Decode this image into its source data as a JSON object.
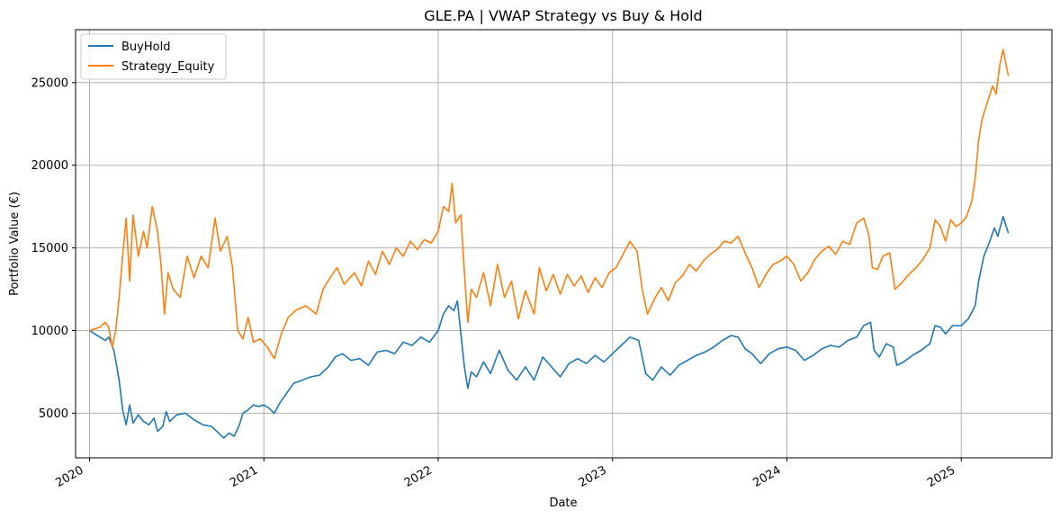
{
  "chart_data": {
    "type": "line",
    "title": "GLE.PA | VWAP Strategy vs Buy & Hold",
    "xlabel": "Date",
    "ylabel": "Portfolio Value (€)",
    "x_range": [
      2019.92,
      2025.52
    ],
    "ylim": [
      2300,
      28200
    ],
    "x_ticks": [
      {
        "value": 2020,
        "label": "2020"
      },
      {
        "value": 2021,
        "label": "2021"
      },
      {
        "value": 2022,
        "label": "2022"
      },
      {
        "value": 2023,
        "label": "2023"
      },
      {
        "value": 2024,
        "label": "2024"
      },
      {
        "value": 2025,
        "label": "2025"
      }
    ],
    "y_ticks": [
      {
        "value": 5000,
        "label": "5000"
      },
      {
        "value": 10000,
        "label": "10000"
      },
      {
        "value": 15000,
        "label": "15000"
      },
      {
        "value": 20000,
        "label": "20000"
      },
      {
        "value": 25000,
        "label": "25000"
      }
    ],
    "grid": true,
    "legend_position": "top-left",
    "series": [
      {
        "name": "BuyHold",
        "color": "#1f77b4",
        "points": [
          [
            2020.0,
            10000
          ],
          [
            2020.03,
            9800
          ],
          [
            2020.06,
            9600
          ],
          [
            2020.09,
            9400
          ],
          [
            2020.11,
            9600
          ],
          [
            2020.14,
            8800
          ],
          [
            2020.17,
            7000
          ],
          [
            2020.19,
            5200
          ],
          [
            2020.21,
            4300
          ],
          [
            2020.23,
            5500
          ],
          [
            2020.25,
            4400
          ],
          [
            2020.28,
            4900
          ],
          [
            2020.31,
            4500
          ],
          [
            2020.34,
            4300
          ],
          [
            2020.37,
            4700
          ],
          [
            2020.39,
            3900
          ],
          [
            2020.42,
            4200
          ],
          [
            2020.44,
            5100
          ],
          [
            2020.46,
            4500
          ],
          [
            2020.5,
            4900
          ],
          [
            2020.55,
            5000
          ],
          [
            2020.6,
            4600
          ],
          [
            2020.65,
            4300
          ],
          [
            2020.7,
            4200
          ],
          [
            2020.74,
            3800
          ],
          [
            2020.77,
            3500
          ],
          [
            2020.8,
            3800
          ],
          [
            2020.83,
            3600
          ],
          [
            2020.86,
            4300
          ],
          [
            2020.88,
            5000
          ],
          [
            2020.91,
            5200
          ],
          [
            2020.94,
            5500
          ],
          [
            2020.97,
            5400
          ],
          [
            2021.0,
            5500
          ],
          [
            2021.03,
            5300
          ],
          [
            2021.06,
            5000
          ],
          [
            2021.09,
            5600
          ],
          [
            2021.13,
            6200
          ],
          [
            2021.17,
            6800
          ],
          [
            2021.22,
            7000
          ],
          [
            2021.27,
            7200
          ],
          [
            2021.32,
            7300
          ],
          [
            2021.37,
            7800
          ],
          [
            2021.41,
            8400
          ],
          [
            2021.45,
            8600
          ],
          [
            2021.5,
            8200
          ],
          [
            2021.55,
            8300
          ],
          [
            2021.6,
            7900
          ],
          [
            2021.65,
            8700
          ],
          [
            2021.7,
            8800
          ],
          [
            2021.75,
            8600
          ],
          [
            2021.8,
            9300
          ],
          [
            2021.85,
            9100
          ],
          [
            2021.9,
            9600
          ],
          [
            2021.95,
            9300
          ],
          [
            2022.0,
            10000
          ],
          [
            2022.03,
            11000
          ],
          [
            2022.06,
            11500
          ],
          [
            2022.09,
            11200
          ],
          [
            2022.11,
            11800
          ],
          [
            2022.13,
            9800
          ],
          [
            2022.15,
            7800
          ],
          [
            2022.17,
            6500
          ],
          [
            2022.19,
            7500
          ],
          [
            2022.22,
            7200
          ],
          [
            2022.26,
            8100
          ],
          [
            2022.3,
            7400
          ],
          [
            2022.35,
            8800
          ],
          [
            2022.4,
            7600
          ],
          [
            2022.45,
            7000
          ],
          [
            2022.5,
            7800
          ],
          [
            2022.55,
            7000
          ],
          [
            2022.6,
            8400
          ],
          [
            2022.65,
            7800
          ],
          [
            2022.7,
            7200
          ],
          [
            2022.75,
            8000
          ],
          [
            2022.8,
            8300
          ],
          [
            2022.85,
            8000
          ],
          [
            2022.9,
            8500
          ],
          [
            2022.95,
            8100
          ],
          [
            2023.0,
            8600
          ],
          [
            2023.05,
            9100
          ],
          [
            2023.1,
            9600
          ],
          [
            2023.15,
            9400
          ],
          [
            2023.19,
            7400
          ],
          [
            2023.23,
            7000
          ],
          [
            2023.28,
            7800
          ],
          [
            2023.33,
            7300
          ],
          [
            2023.38,
            7900
          ],
          [
            2023.43,
            8200
          ],
          [
            2023.48,
            8500
          ],
          [
            2023.53,
            8700
          ],
          [
            2023.58,
            9000
          ],
          [
            2023.63,
            9400
          ],
          [
            2023.68,
            9700
          ],
          [
            2023.72,
            9600
          ],
          [
            2023.76,
            8900
          ],
          [
            2023.8,
            8600
          ],
          [
            2023.85,
            8000
          ],
          [
            2023.9,
            8600
          ],
          [
            2023.95,
            8900
          ],
          [
            2024.0,
            9000
          ],
          [
            2024.05,
            8800
          ],
          [
            2024.1,
            8200
          ],
          [
            2024.15,
            8500
          ],
          [
            2024.2,
            8900
          ],
          [
            2024.25,
            9100
          ],
          [
            2024.3,
            9000
          ],
          [
            2024.35,
            9400
          ],
          [
            2024.4,
            9600
          ],
          [
            2024.44,
            10300
          ],
          [
            2024.48,
            10500
          ],
          [
            2024.5,
            8800
          ],
          [
            2024.53,
            8400
          ],
          [
            2024.57,
            9200
          ],
          [
            2024.61,
            9000
          ],
          [
            2024.63,
            7900
          ],
          [
            2024.67,
            8100
          ],
          [
            2024.72,
            8500
          ],
          [
            2024.77,
            8800
          ],
          [
            2024.82,
            9200
          ],
          [
            2024.85,
            10300
          ],
          [
            2024.88,
            10200
          ],
          [
            2024.91,
            9800
          ],
          [
            2024.95,
            10300
          ],
          [
            2025.0,
            10300
          ],
          [
            2025.04,
            10700
          ],
          [
            2025.08,
            11500
          ],
          [
            2025.1,
            13000
          ],
          [
            2025.13,
            14500
          ],
          [
            2025.16,
            15300
          ],
          [
            2025.19,
            16200
          ],
          [
            2025.21,
            15700
          ],
          [
            2025.24,
            16900
          ],
          [
            2025.27,
            15900
          ]
        ]
      },
      {
        "name": "Strategy_Equity",
        "color": "#ff7f0e",
        "points": [
          [
            2020.0,
            10000
          ],
          [
            2020.03,
            10100
          ],
          [
            2020.06,
            10200
          ],
          [
            2020.09,
            10500
          ],
          [
            2020.11,
            10200
          ],
          [
            2020.13,
            9000
          ],
          [
            2020.15,
            10000
          ],
          [
            2020.17,
            12000
          ],
          [
            2020.19,
            14500
          ],
          [
            2020.21,
            16800
          ],
          [
            2020.23,
            13000
          ],
          [
            2020.25,
            17000
          ],
          [
            2020.28,
            14500
          ],
          [
            2020.31,
            16000
          ],
          [
            2020.33,
            15000
          ],
          [
            2020.36,
            17500
          ],
          [
            2020.39,
            16000
          ],
          [
            2020.41,
            14000
          ],
          [
            2020.43,
            11000
          ],
          [
            2020.45,
            13500
          ],
          [
            2020.48,
            12500
          ],
          [
            2020.52,
            12000
          ],
          [
            2020.56,
            14500
          ],
          [
            2020.6,
            13200
          ],
          [
            2020.64,
            14500
          ],
          [
            2020.68,
            13800
          ],
          [
            2020.72,
            16800
          ],
          [
            2020.75,
            14800
          ],
          [
            2020.79,
            15700
          ],
          [
            2020.82,
            13800
          ],
          [
            2020.85,
            10000
          ],
          [
            2020.88,
            9500
          ],
          [
            2020.91,
            10800
          ],
          [
            2020.94,
            9300
          ],
          [
            2020.98,
            9500
          ],
          [
            2021.02,
            9000
          ],
          [
            2021.06,
            8300
          ],
          [
            2021.1,
            9800
          ],
          [
            2021.14,
            10800
          ],
          [
            2021.18,
            11200
          ],
          [
            2021.24,
            11500
          ],
          [
            2021.3,
            11000
          ],
          [
            2021.34,
            12500
          ],
          [
            2021.38,
            13200
          ],
          [
            2021.42,
            13800
          ],
          [
            2021.46,
            12800
          ],
          [
            2021.52,
            13500
          ],
          [
            2021.56,
            12700
          ],
          [
            2021.6,
            14200
          ],
          [
            2021.64,
            13400
          ],
          [
            2021.68,
            14800
          ],
          [
            2021.72,
            14000
          ],
          [
            2021.76,
            15000
          ],
          [
            2021.8,
            14500
          ],
          [
            2021.84,
            15400
          ],
          [
            2021.88,
            14900
          ],
          [
            2021.92,
            15500
          ],
          [
            2021.96,
            15300
          ],
          [
            2022.0,
            16000
          ],
          [
            2022.03,
            17500
          ],
          [
            2022.06,
            17200
          ],
          [
            2022.08,
            18900
          ],
          [
            2022.1,
            16500
          ],
          [
            2022.13,
            17000
          ],
          [
            2022.15,
            13500
          ],
          [
            2022.17,
            10500
          ],
          [
            2022.19,
            12500
          ],
          [
            2022.22,
            12000
          ],
          [
            2022.26,
            13500
          ],
          [
            2022.3,
            11500
          ],
          [
            2022.34,
            14000
          ],
          [
            2022.38,
            12000
          ],
          [
            2022.42,
            13000
          ],
          [
            2022.46,
            10700
          ],
          [
            2022.5,
            12400
          ],
          [
            2022.55,
            11000
          ],
          [
            2022.58,
            13800
          ],
          [
            2022.62,
            12400
          ],
          [
            2022.66,
            13400
          ],
          [
            2022.7,
            12200
          ],
          [
            2022.74,
            13400
          ],
          [
            2022.78,
            12700
          ],
          [
            2022.82,
            13300
          ],
          [
            2022.86,
            12300
          ],
          [
            2022.9,
            13200
          ],
          [
            2022.94,
            12600
          ],
          [
            2022.98,
            13500
          ],
          [
            2023.02,
            13800
          ],
          [
            2023.06,
            14600
          ],
          [
            2023.1,
            15400
          ],
          [
            2023.14,
            14800
          ],
          [
            2023.17,
            12500
          ],
          [
            2023.2,
            11000
          ],
          [
            2023.24,
            11900
          ],
          [
            2023.28,
            12600
          ],
          [
            2023.32,
            11800
          ],
          [
            2023.36,
            12900
          ],
          [
            2023.4,
            13300
          ],
          [
            2023.44,
            14000
          ],
          [
            2023.48,
            13600
          ],
          [
            2023.52,
            14200
          ],
          [
            2023.56,
            14600
          ],
          [
            2023.6,
            14900
          ],
          [
            2023.64,
            15400
          ],
          [
            2023.68,
            15300
          ],
          [
            2023.72,
            15700
          ],
          [
            2023.76,
            14700
          ],
          [
            2023.8,
            13800
          ],
          [
            2023.84,
            12600
          ],
          [
            2023.88,
            13400
          ],
          [
            2023.92,
            14000
          ],
          [
            2023.96,
            14200
          ],
          [
            2024.0,
            14500
          ],
          [
            2024.04,
            14000
          ],
          [
            2024.08,
            13000
          ],
          [
            2024.12,
            13500
          ],
          [
            2024.16,
            14300
          ],
          [
            2024.2,
            14800
          ],
          [
            2024.24,
            15100
          ],
          [
            2024.28,
            14600
          ],
          [
            2024.32,
            15400
          ],
          [
            2024.36,
            15200
          ],
          [
            2024.4,
            16500
          ],
          [
            2024.44,
            16800
          ],
          [
            2024.47,
            15800
          ],
          [
            2024.49,
            13800
          ],
          [
            2024.52,
            13700
          ],
          [
            2024.55,
            14500
          ],
          [
            2024.59,
            14700
          ],
          [
            2024.62,
            12500
          ],
          [
            2024.66,
            12900
          ],
          [
            2024.7,
            13400
          ],
          [
            2024.74,
            13800
          ],
          [
            2024.78,
            14300
          ],
          [
            2024.82,
            15000
          ],
          [
            2024.85,
            16700
          ],
          [
            2024.88,
            16300
          ],
          [
            2024.91,
            15400
          ],
          [
            2024.94,
            16700
          ],
          [
            2024.97,
            16300
          ],
          [
            2025.0,
            16500
          ],
          [
            2025.03,
            16900
          ],
          [
            2025.06,
            17800
          ],
          [
            2025.08,
            19200
          ],
          [
            2025.1,
            21500
          ],
          [
            2025.12,
            22800
          ],
          [
            2025.15,
            23800
          ],
          [
            2025.18,
            24800
          ],
          [
            2025.2,
            24300
          ],
          [
            2025.22,
            26000
          ],
          [
            2025.24,
            27000
          ],
          [
            2025.27,
            25400
          ]
        ]
      }
    ]
  }
}
